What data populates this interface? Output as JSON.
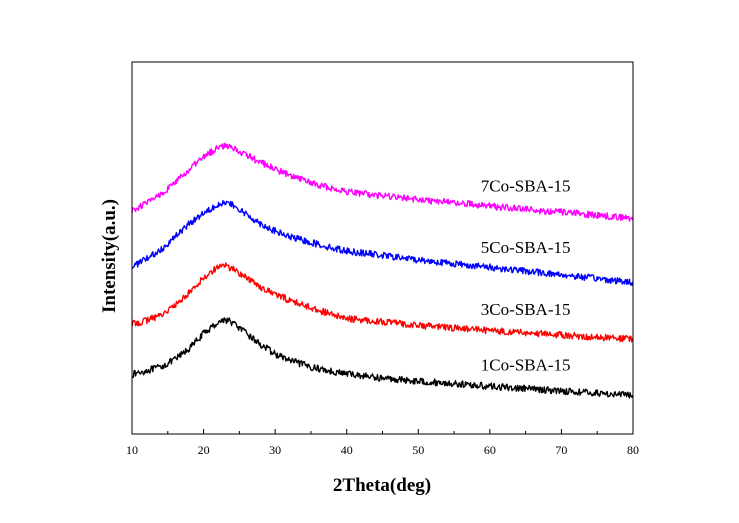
{
  "chart_data": {
    "type": "line",
    "title": "",
    "xlabel": "2Theta(deg)",
    "ylabel": "Intensity(a.u.)",
    "xlim": [
      10,
      80
    ],
    "ylim": [
      0,
      100
    ],
    "x_ticks": [
      10,
      20,
      30,
      40,
      50,
      60,
      70,
      80
    ],
    "y_ticks_labeled": false,
    "grid": false,
    "legend": "none",
    "series": [
      {
        "name": "1Co-SBA-15",
        "color": "#000000",
        "x": [
          10,
          12,
          14,
          16,
          18,
          20,
          22,
          23,
          24,
          26,
          28,
          30,
          32,
          35,
          38,
          40,
          45,
          50,
          55,
          60,
          65,
          70,
          75,
          80
        ],
        "y": [
          16,
          17,
          18,
          20,
          23,
          27,
          30,
          30.8,
          30,
          27,
          24,
          21.5,
          19.8,
          18,
          16.8,
          16.2,
          15,
          14.2,
          13.5,
          12.8,
          12.2,
          11.6,
          11,
          10.4
        ]
      },
      {
        "name": "3Co-SBA-15",
        "color": "#ff0000",
        "x": [
          10,
          12,
          14,
          16,
          18,
          20,
          22,
          23,
          24,
          26,
          28,
          30,
          32,
          35,
          38,
          40,
          45,
          50,
          55,
          60,
          65,
          70,
          75,
          80
        ],
        "y": [
          29.5,
          30.5,
          32,
          34.5,
          38,
          42,
          45,
          45.3,
          44.5,
          42,
          39.5,
          37.5,
          36,
          34,
          32,
          31,
          30.2,
          29.2,
          28.5,
          27.8,
          27.2,
          26.6,
          26,
          25.5
        ]
      },
      {
        "name": "5Co-SBA-15",
        "color": "#0000ff",
        "x": [
          10,
          12,
          14,
          16,
          18,
          20,
          22,
          23,
          24,
          26,
          28,
          30,
          32,
          35,
          38,
          40,
          45,
          50,
          55,
          60,
          65,
          70,
          75,
          80
        ],
        "y": [
          45,
          47,
          49.5,
          53,
          56.5,
          59.5,
          61.8,
          62.2,
          61.5,
          59,
          56.5,
          54.5,
          53,
          51.5,
          50,
          49.2,
          48,
          46.8,
          45.8,
          44.8,
          43.8,
          42.8,
          41.8,
          40.7
        ]
      },
      {
        "name": "7Co-SBA-15",
        "color": "#ff00ff",
        "x": [
          10,
          12,
          14,
          16,
          18,
          20,
          22,
          23,
          24,
          26,
          28,
          30,
          32,
          35,
          38,
          40,
          45,
          50,
          55,
          60,
          65,
          70,
          75,
          80
        ],
        "y": [
          60,
          62,
          64.5,
          67.5,
          71,
          74.5,
          77,
          77.6,
          77,
          75,
          73,
          71.2,
          69.5,
          67.5,
          66,
          65.2,
          64,
          63,
          62.2,
          61.3,
          60.4,
          59.6,
          58.8,
          58
        ]
      }
    ]
  }
}
